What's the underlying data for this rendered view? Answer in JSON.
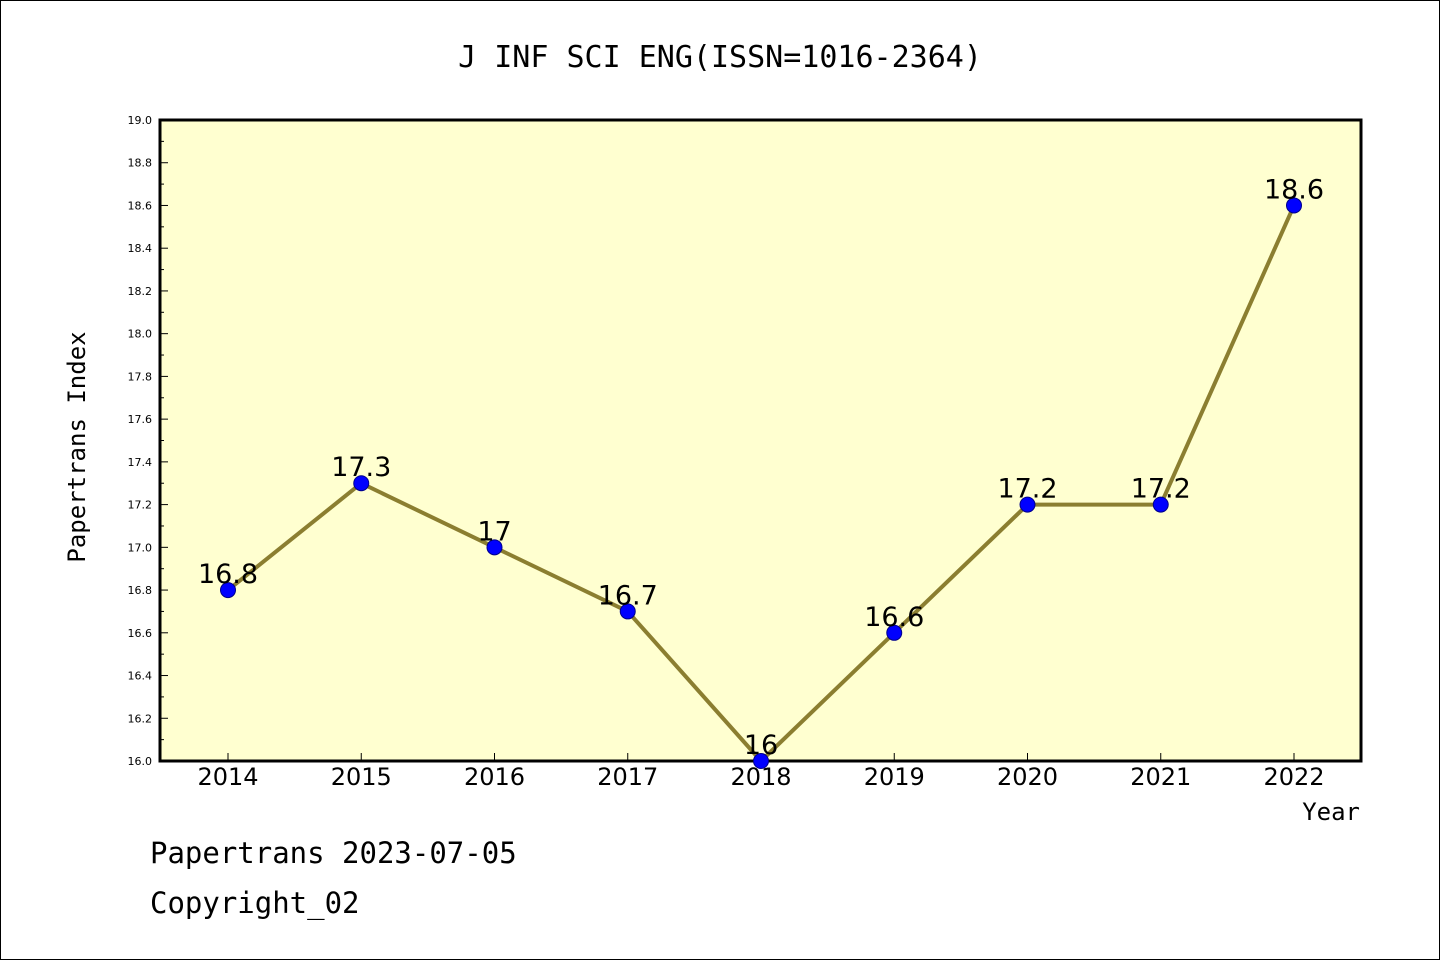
{
  "chart_data": {
    "type": "line",
    "title": "J INF SCI ENG(ISSN=1016-2364)",
    "xlabel": "Year",
    "ylabel": "Papertrans Index",
    "categories": [
      "2014",
      "2015",
      "2016",
      "2017",
      "2018",
      "2019",
      "2020",
      "2021",
      "2022"
    ],
    "values": [
      16.8,
      17.3,
      17.0,
      16.7,
      16.0,
      16.6,
      17.2,
      17.2,
      18.6
    ],
    "data_labels": [
      "16.8",
      "17.3",
      "17",
      "16.7",
      "16",
      "16.6",
      "17.2",
      "17.2",
      "18.6"
    ],
    "ylim": [
      16.0,
      19.0
    ],
    "yticks": [
      "16.0",
      "16.2",
      "16.4",
      "16.6",
      "16.8",
      "17.0",
      "17.2",
      "17.4",
      "17.6",
      "17.8",
      "18.0",
      "18.2",
      "18.4",
      "18.6",
      "18.8",
      "19.0"
    ],
    "grid": false,
    "colors": {
      "plot_bg": "#ffffd0",
      "line": "#8b7e30",
      "marker": "#0000ff",
      "marker_edge": "#00008b"
    }
  },
  "footer": {
    "line1": "Papertrans 2023-07-05",
    "line2": "Copyright_02"
  }
}
